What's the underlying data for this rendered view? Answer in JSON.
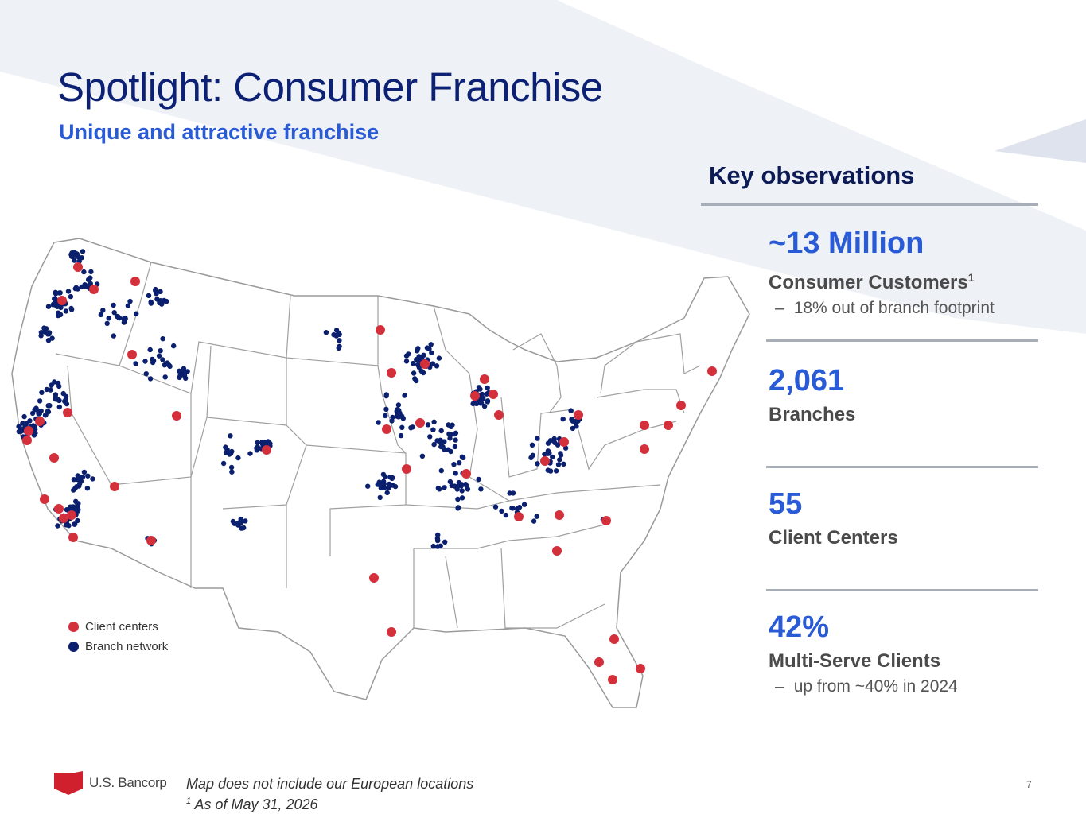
{
  "header": {
    "title": "Spotlight: Consumer Franchise",
    "subtitle": "Unique and attractive franchise"
  },
  "map": {
    "legend": {
      "client_centers_label": "Client centers",
      "branch_network_label": "Branch network"
    },
    "colors": {
      "client_centers": "#d3303b",
      "branch_network": "#0a1f6e",
      "state_fill": "#ffffff",
      "state_stroke": "#9a9a9a"
    }
  },
  "observations": {
    "title": "Key observations",
    "items": [
      {
        "value": "~13 Million",
        "label": "Consumer Customers",
        "label_sup": "1",
        "sub": "18% out of branch footprint"
      },
      {
        "value": "2,061",
        "label": "Branches",
        "label_sup": "",
        "sub": ""
      },
      {
        "value": "55",
        "label": "Client Centers",
        "label_sup": "",
        "sub": ""
      },
      {
        "value": "42%",
        "label": "Multi-Serve Clients",
        "label_sup": "",
        "sub": "up from ~40% in 2024"
      }
    ],
    "bullet": "–"
  },
  "footer": {
    "logo_text": "U.S. Bancorp",
    "note_line1": "Map does not include our European locations",
    "note_line2_sup": "1",
    "note_line2": " As of May 31, 2026",
    "page_number": "7"
  }
}
